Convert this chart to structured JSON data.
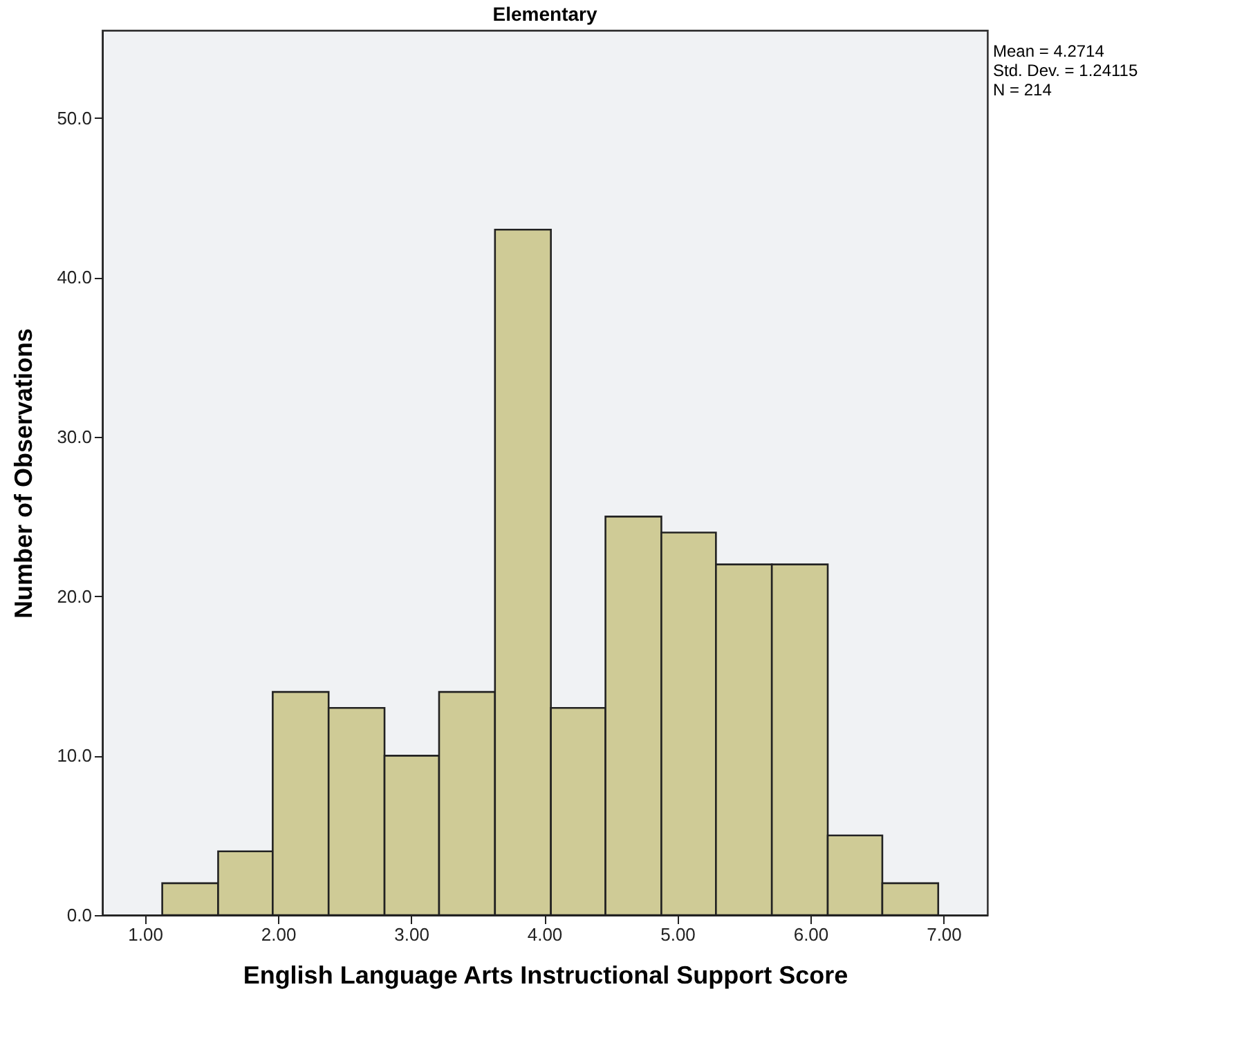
{
  "chart_data": {
    "type": "histogram",
    "title": "Elementary",
    "xlabel": "English Language Arts Instructional Support Score",
    "ylabel": "Number of Observations",
    "bins": [
      1.13,
      1.55,
      1.96,
      2.38,
      2.8,
      3.21,
      3.63,
      4.05,
      4.46,
      4.88,
      5.29,
      5.71,
      6.13,
      6.54,
      6.96
    ],
    "values": [
      2,
      4,
      14,
      13,
      10,
      14,
      43,
      13,
      25,
      24,
      22,
      22,
      5,
      2
    ],
    "color": "#cfcb96",
    "xlim": [
      0.68,
      7.33
    ],
    "xticks": [
      {
        "value": 1,
        "label": "1.00"
      },
      {
        "value": 2,
        "label": "2.00"
      },
      {
        "value": 3,
        "label": "3.00"
      },
      {
        "value": 4,
        "label": "4.00"
      },
      {
        "value": 5,
        "label": "5.00"
      },
      {
        "value": 6,
        "label": "6.00"
      },
      {
        "value": 7,
        "label": "7.00"
      }
    ],
    "ylim": [
      0,
      55.5
    ],
    "yticks": [
      {
        "value": 0,
        "label": "0.0"
      },
      {
        "value": 10,
        "label": "10.0"
      },
      {
        "value": 20,
        "label": "20.0"
      },
      {
        "value": 30,
        "label": "30.0"
      },
      {
        "value": 40,
        "label": "40.0"
      },
      {
        "value": 50,
        "label": "50.0"
      }
    ],
    "annotations": [
      "Mean = 4.2714",
      "Std. Dev. = 1.24115",
      "N = 214"
    ],
    "grid": false
  }
}
